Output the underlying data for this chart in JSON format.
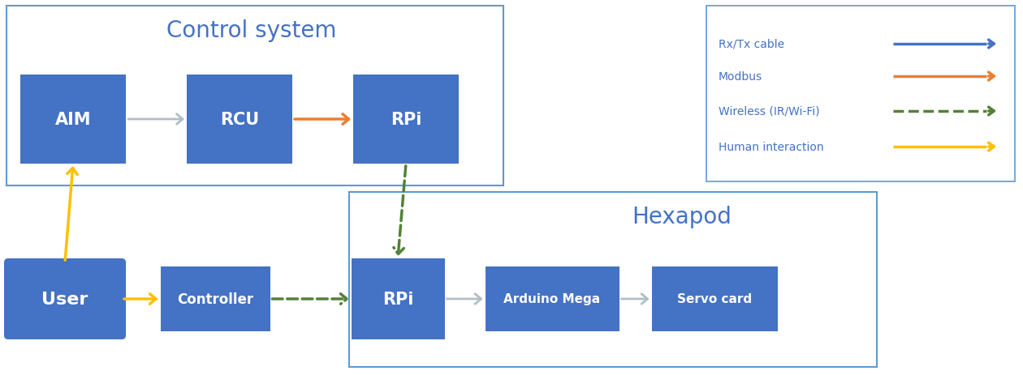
{
  "bg_color": "#ffffff",
  "box_color": "#4472c4",
  "box_text_color": "#ffffff",
  "border_color": "#5b9bd5",
  "label_color": "#4472c4",
  "arrow_gray": "#b0bec5",
  "arrow_orange": "#ed7d31",
  "arrow_green": "#538135",
  "arrow_yellow": "#ffc000",
  "title_control": "Control system",
  "title_hexapod": "Hexapod",
  "legend_items": [
    {
      "label": "Rx/Tx cable",
      "color": "#4472c4",
      "style": "solid"
    },
    {
      "label": "Modbus",
      "color": "#ed7d31",
      "style": "solid"
    },
    {
      "label": "Wireless (IR/Wi-Fi)",
      "color": "#538135",
      "style": "dashed"
    },
    {
      "label": "Human interaction",
      "color": "#ffc000",
      "style": "solid"
    }
  ]
}
